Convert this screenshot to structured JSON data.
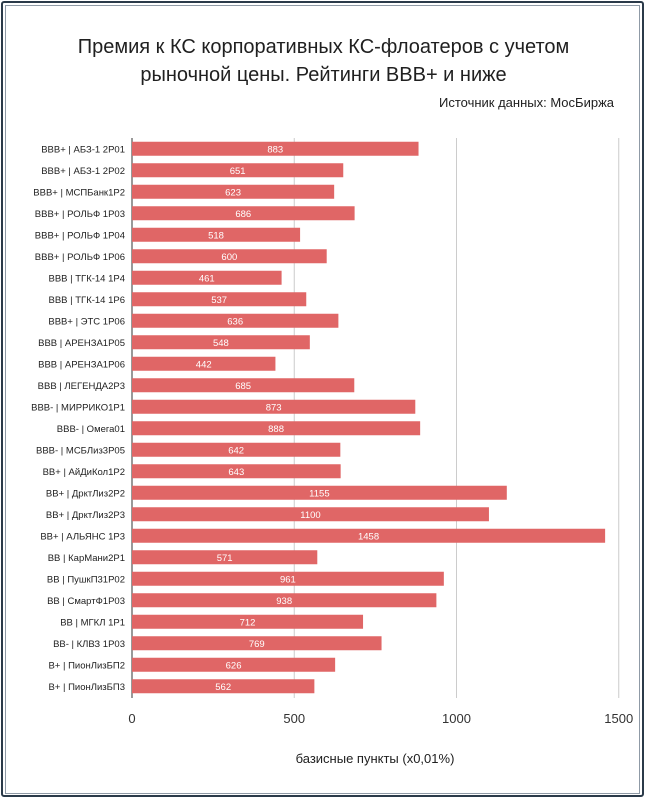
{
  "chart_data": {
    "type": "bar",
    "orientation": "horizontal",
    "title": "Премия к КС корпоративных КС-флоатеров с учетом рыночной цены. Рейтинги BBB+ и ниже",
    "source": "Источник данных: МосБиржа",
    "xlabel": "базисные пункты (x0,01%)",
    "ylabel": "",
    "xlim": [
      0,
      1500
    ],
    "x_ticks": [
      0,
      500,
      1000,
      1500
    ],
    "grid": true,
    "bar_color": "#e06666",
    "categories": [
      "BBB+ | АБЗ-1 2P01",
      "BBB+ | АБЗ-1 2P02",
      "BBB+ | МСПБанк1P2",
      "BBB+ | РОЛЬФ 1P03",
      "BBB+ | РОЛЬФ 1P04",
      "BBB+ | РОЛЬФ 1P06",
      "BBB | ТГК-14 1P4",
      "BBB | ТГК-14 1P6",
      "BBB+ | ЭТС 1P06",
      "BBB | АРЕНЗА1P05",
      "BBB | АРЕНЗА1P06",
      "BBB | ЛЕГЕНДА2P3",
      "BBB- | МИРРИКО1P1",
      "BBB- | Омега01",
      "BBB- | МСБЛиз3P05",
      "BB+ | АйДиКол1P2",
      "BB+ | ДрктЛиз2P2",
      "BB+ | ДрктЛиз2P3",
      "BB+ | АЛЬЯНС 1P3",
      "BB | КарМани2P1",
      "BB | ПушкП31P02",
      "BB | СмартФ1P03",
      "BB | МГКЛ 1P1",
      "BB- | КЛВЗ 1P03",
      "B+ | ПионЛизБП2",
      "B+ | ПионЛизБП3"
    ],
    "values": [
      883,
      651,
      623,
      686,
      518,
      600,
      461,
      537,
      636,
      548,
      442,
      685,
      873,
      888,
      642,
      643,
      1155,
      1100,
      1458,
      571,
      961,
      938,
      712,
      769,
      626,
      562
    ]
  }
}
